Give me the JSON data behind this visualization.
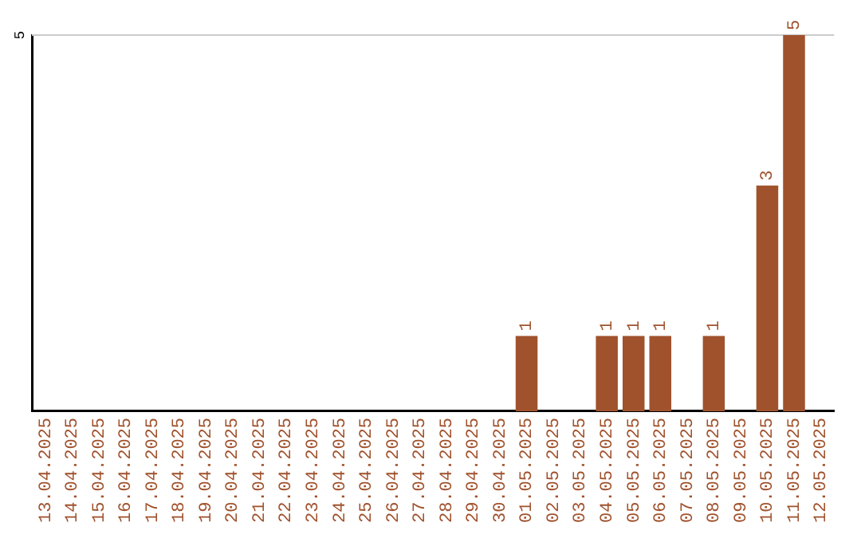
{
  "chart_data": {
    "type": "bar",
    "categories": [
      "13.04.2025",
      "14.04.2025",
      "15.04.2025",
      "16.04.2025",
      "17.04.2025",
      "18.04.2025",
      "19.04.2025",
      "20.04.2025",
      "21.04.2025",
      "22.04.2025",
      "23.04.2025",
      "24.04.2025",
      "25.04.2025",
      "26.04.2025",
      "27.04.2025",
      "28.04.2025",
      "29.04.2025",
      "30.04.2025",
      "01.05.2025",
      "02.05.2025",
      "03.05.2025",
      "04.05.2025",
      "05.05.2025",
      "06.05.2025",
      "07.05.2025",
      "08.05.2025",
      "09.05.2025",
      "10.05.2025",
      "11.05.2025",
      "12.05.2025"
    ],
    "values": [
      null,
      null,
      null,
      null,
      null,
      null,
      null,
      null,
      null,
      null,
      null,
      null,
      null,
      null,
      null,
      null,
      null,
      null,
      1,
      null,
      null,
      1,
      1,
      1,
      null,
      1,
      null,
      3,
      5,
      null
    ],
    "value_labels": [
      null,
      null,
      null,
      null,
      null,
      null,
      null,
      null,
      null,
      null,
      null,
      null,
      null,
      null,
      null,
      null,
      null,
      null,
      "1",
      null,
      null,
      "1",
      "1",
      "1",
      null,
      "1",
      null,
      "3",
      "5",
      null
    ],
    "color": "#a0522d",
    "ref_lines": [
      {
        "axis": "y",
        "value": 5,
        "label": "5",
        "color": "#cccccc"
      }
    ],
    "legend": false
  }
}
